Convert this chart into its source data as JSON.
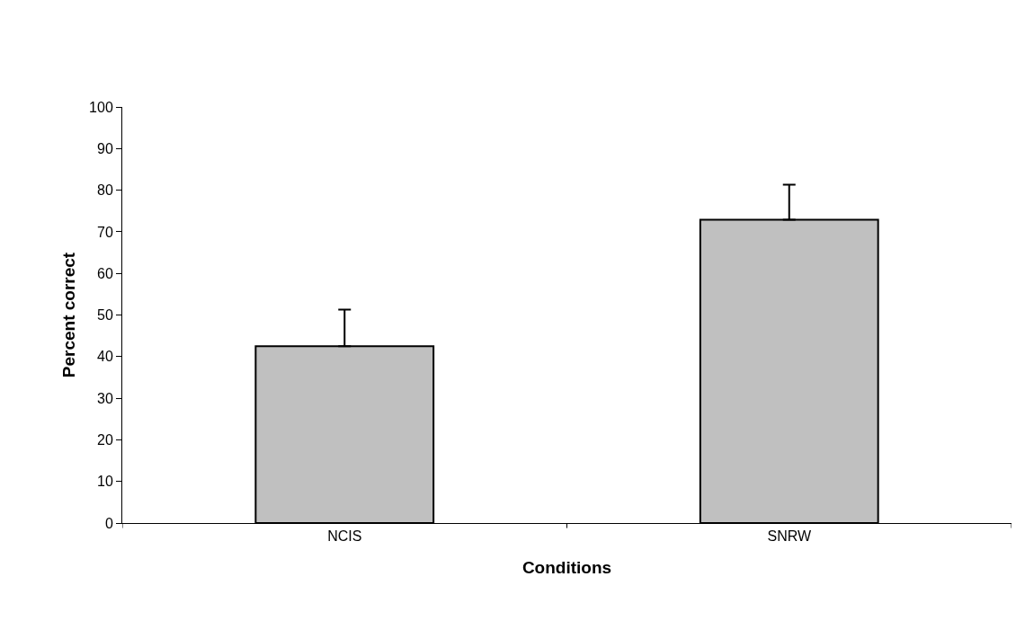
{
  "chart_data": {
    "type": "bar",
    "xlabel": "Conditions",
    "ylabel": "Percent correct",
    "categories": [
      "NCIS",
      "SNRW"
    ],
    "values": [
      42.5,
      72.9
    ],
    "errors": [
      [
        42.5,
        51.3
      ],
      [
        72.9,
        81.3
      ]
    ],
    "color": "#c0c0c0",
    "ylim": [
      0,
      100
    ],
    "yticks": [
      0,
      10,
      20,
      30,
      40,
      50,
      60,
      70,
      80,
      90,
      100
    ],
    "grid": false,
    "legend": false
  }
}
